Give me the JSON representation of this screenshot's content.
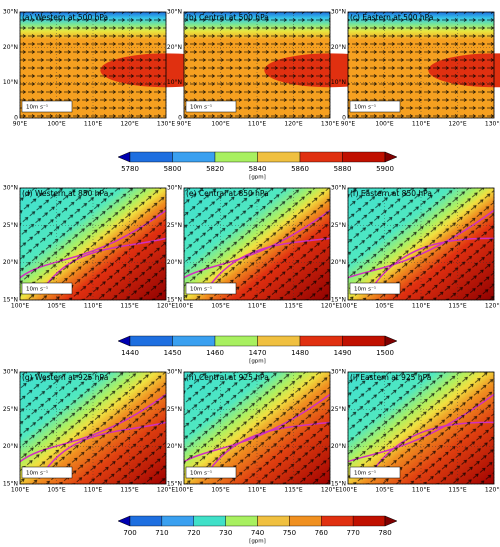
{
  "rows": [
    {
      "panels": [
        {
          "title": "(a) Western at 500 hPa"
        },
        {
          "title": "(b) Central at 500 hPa"
        },
        {
          "title": "(c) Eastern at 500 hPa"
        }
      ],
      "lat_ticks": [
        "0",
        "10°N",
        "20°N",
        "30°N"
      ],
      "lon_ticks": [
        "90°E",
        "100°E",
        "110°E",
        "120°E",
        "130°E"
      ],
      "colorbar": {
        "ticks": [
          "5780",
          "5800",
          "5820",
          "5840",
          "5860",
          "5880",
          "5900"
        ],
        "unit": "[gpm]"
      }
    },
    {
      "panels": [
        {
          "title": "(d) Western at 850 hPa"
        },
        {
          "title": "(e) Central at 850 hPa"
        },
        {
          "title": "(f) Eastern at 850 hPa"
        }
      ],
      "lat_ticks": [
        "15°N",
        "20°N",
        "25°N",
        "30°N"
      ],
      "lon_ticks": [
        "100°E",
        "105°E",
        "110°E",
        "115°E",
        "120°E"
      ],
      "colorbar": {
        "ticks": [
          "1440",
          "1450",
          "1460",
          "1470",
          "1480",
          "1490",
          "1500"
        ],
        "unit": "[gpm]"
      }
    },
    {
      "panels": [
        {
          "title": "(g) Western at 925 hPa"
        },
        {
          "title": "(h) Central at 925 hPa"
        },
        {
          "title": "(i) Eastern at 925 hPa"
        }
      ],
      "lat_ticks": [
        "15°N",
        "20°N",
        "25°N",
        "30°N"
      ],
      "lon_ticks": [
        "100°E",
        "105°E",
        "110°E",
        "115°E",
        "120°E"
      ],
      "colorbar": {
        "ticks": [
          "700",
          "710",
          "720",
          "730",
          "740",
          "750",
          "760",
          "770",
          "780"
        ],
        "unit": "[gpm]"
      }
    }
  ],
  "reference_vector_label": "10m s⁻¹"
}
